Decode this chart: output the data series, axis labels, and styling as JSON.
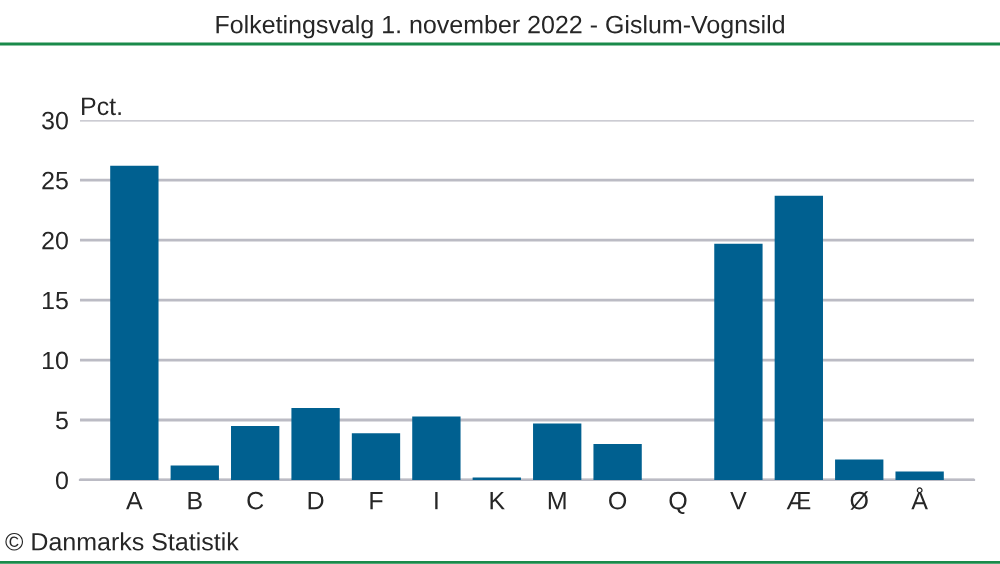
{
  "chart_data": {
    "type": "bar",
    "title": "Folketingsvalg 1. november 2022 - Gislum-Vognsild",
    "ylabel": "Pct.",
    "categories": [
      "A",
      "B",
      "C",
      "D",
      "F",
      "I",
      "K",
      "M",
      "O",
      "Q",
      "V",
      "Æ",
      "Ø",
      "Å"
    ],
    "values": [
      26.2,
      1.2,
      4.5,
      6.0,
      3.9,
      5.3,
      0.2,
      4.7,
      3.0,
      0,
      19.7,
      23.7,
      1.7,
      0.7
    ],
    "color": "#006090",
    "ylim": [
      0,
      30
    ],
    "yticks": [
      0,
      5,
      10,
      15,
      20,
      25,
      30
    ],
    "grid": "y",
    "annotations": [
      "© Danmarks Statistik"
    ]
  }
}
